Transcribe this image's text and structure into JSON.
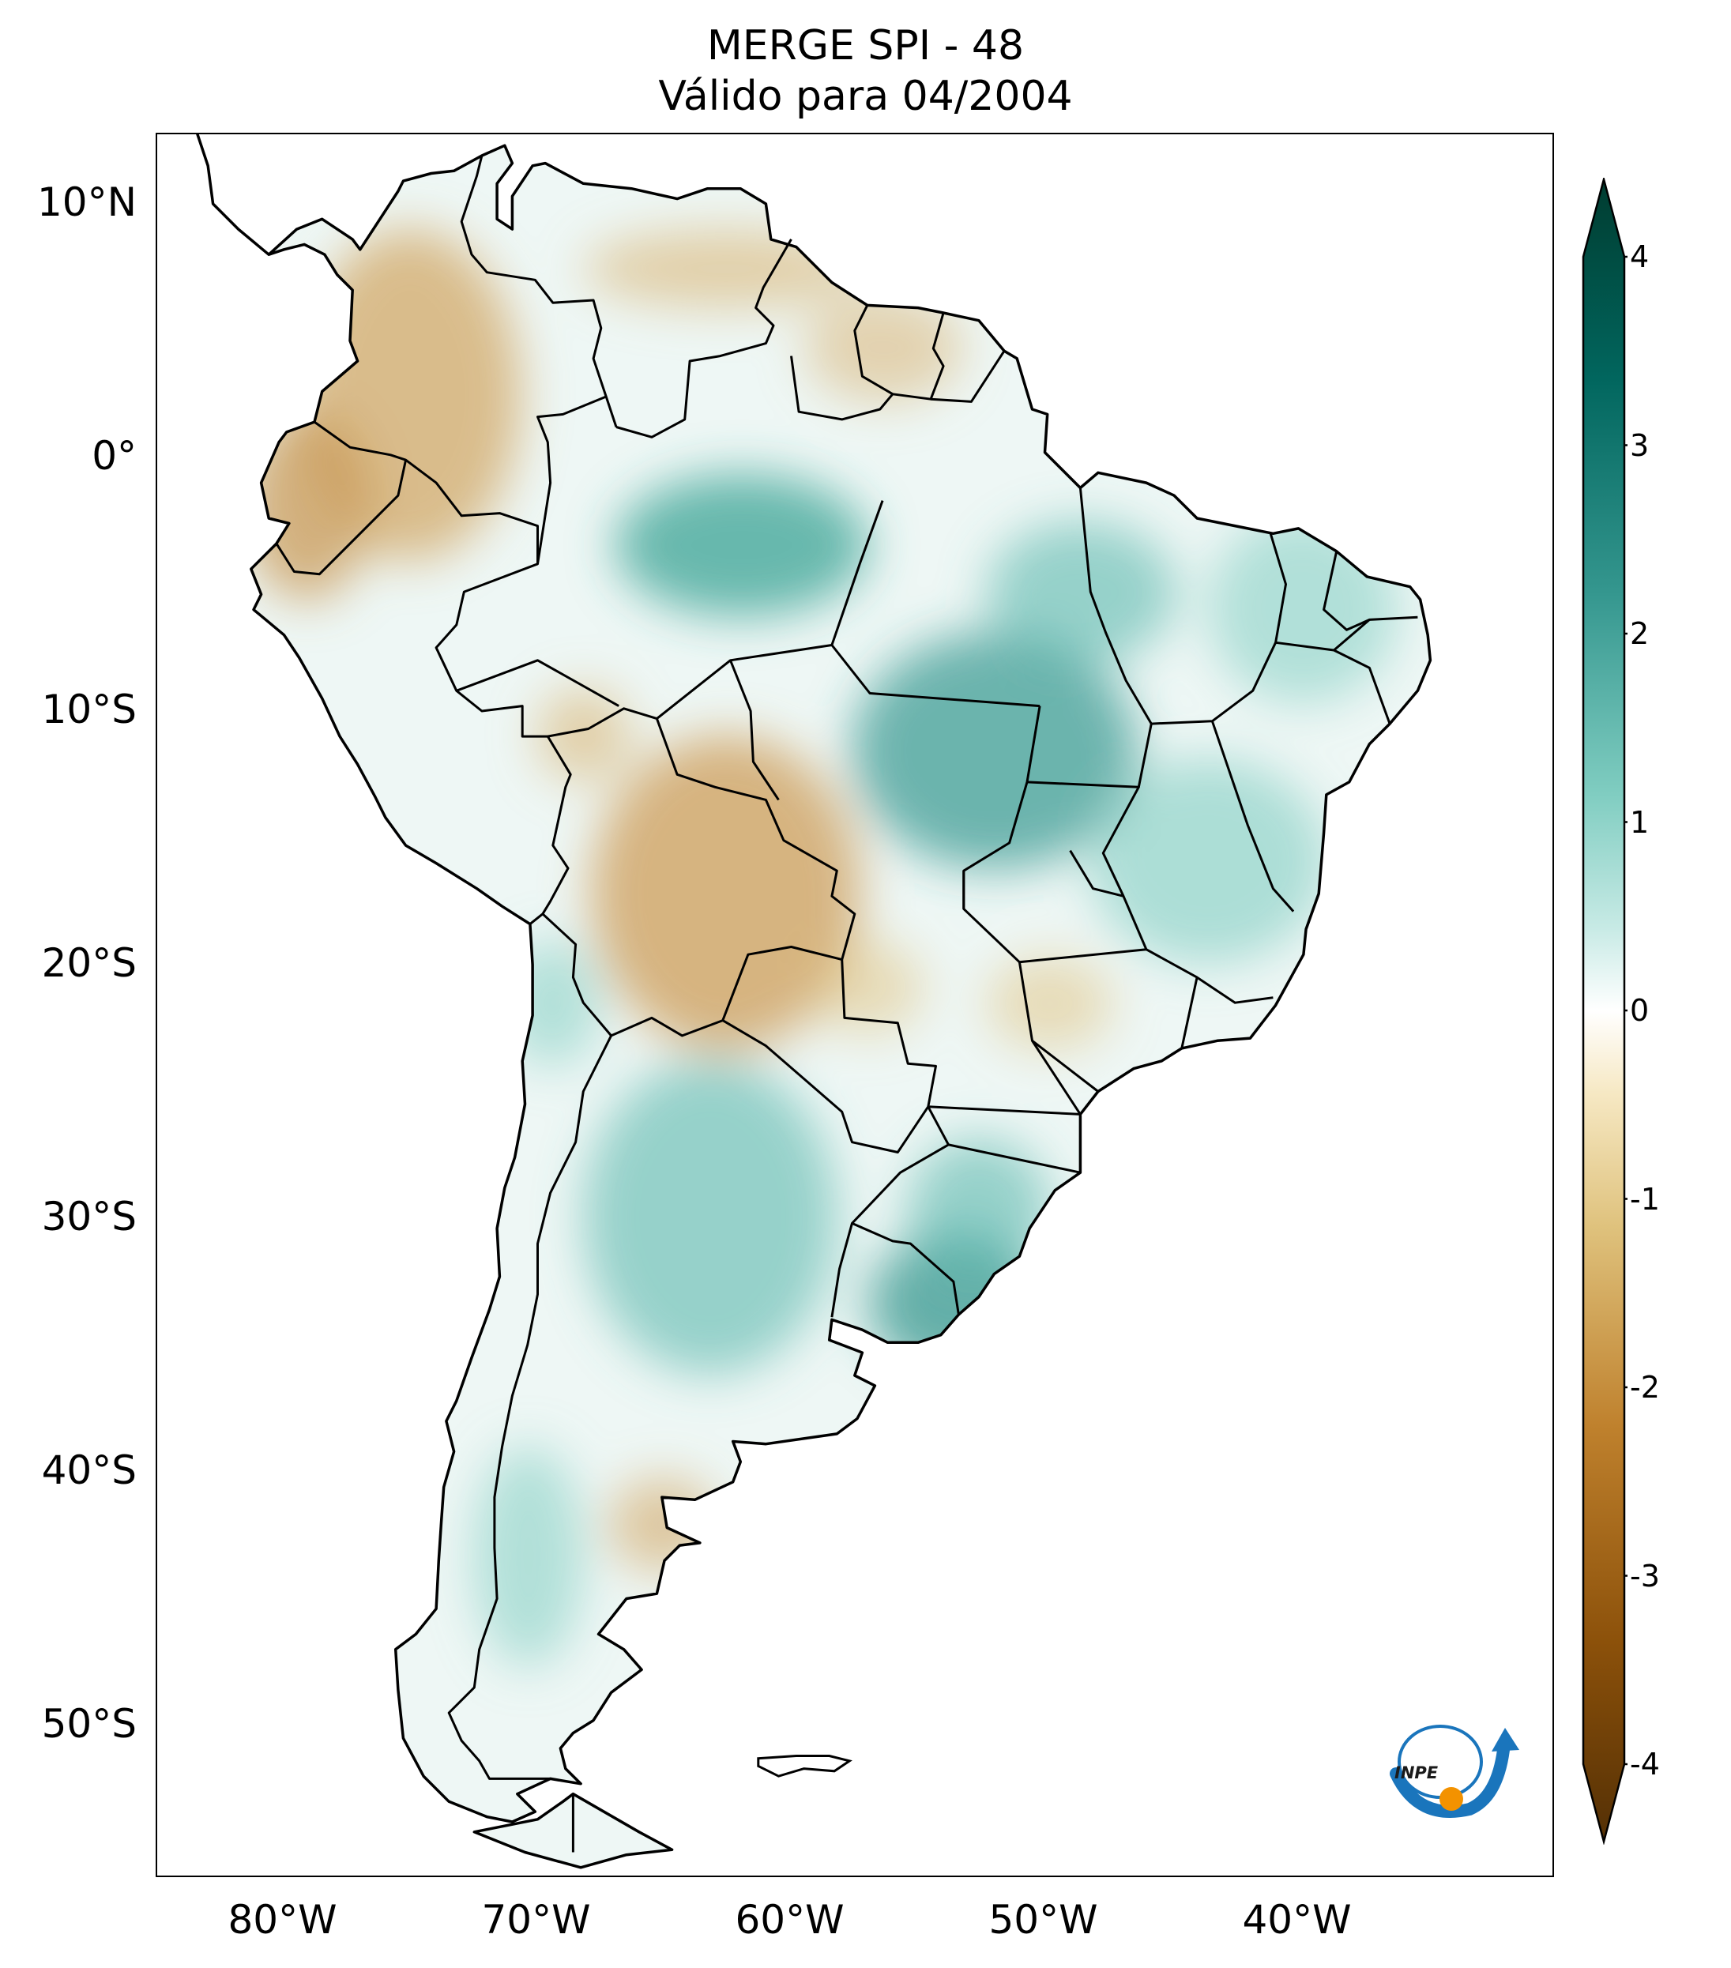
{
  "title": {
    "line1": "MERGE   SPI - 48",
    "line2": "Válido para 04/2004"
  },
  "axes": {
    "lat_ticks": [
      {
        "label": "10°N",
        "lat": 10
      },
      {
        "label": "0°",
        "lat": 0
      },
      {
        "label": "10°S",
        "lat": -10
      },
      {
        "label": "20°S",
        "lat": -20
      },
      {
        "label": "30°S",
        "lat": -30
      },
      {
        "label": "40°S",
        "lat": -40
      },
      {
        "label": "50°S",
        "lat": -50
      }
    ],
    "lon_ticks": [
      {
        "label": "80°W",
        "lon": -80
      },
      {
        "label": "70°W",
        "lon": -70
      },
      {
        "label": "60°W",
        "lon": -60
      },
      {
        "label": "50°W",
        "lon": -50
      },
      {
        "label": "40°W",
        "lon": -40
      }
    ],
    "lon_range": [
      -85,
      -30
    ],
    "lat_range": [
      -56,
      13
    ]
  },
  "colorbar": {
    "ticks": [
      {
        "label": "4",
        "value": 4
      },
      {
        "label": "3",
        "value": 3
      },
      {
        "label": "2",
        "value": 2
      },
      {
        "label": "1",
        "value": 1
      },
      {
        "label": "0",
        "value": 0
      },
      {
        "label": "-1",
        "value": -1
      },
      {
        "label": "-2",
        "value": -2
      },
      {
        "label": "-3",
        "value": -3
      },
      {
        "label": "-4",
        "value": -4
      }
    ],
    "range": [
      -4,
      4
    ],
    "colors": [
      "#543005",
      "#8c510a",
      "#bf812d",
      "#dfc27d",
      "#f6e8c3",
      "#ffffff",
      "#c7eae5",
      "#80cdc1",
      "#35978f",
      "#01665e",
      "#003c30"
    ]
  },
  "logo": {
    "text": "INPE",
    "colors": {
      "blue": "#1a75bc",
      "orange": "#f39200"
    }
  },
  "map": {
    "coast_color": "#000000",
    "dry_color": "#d2a867",
    "wet_color": "#3aa394",
    "neutral_color": "#eef7f5"
  }
}
